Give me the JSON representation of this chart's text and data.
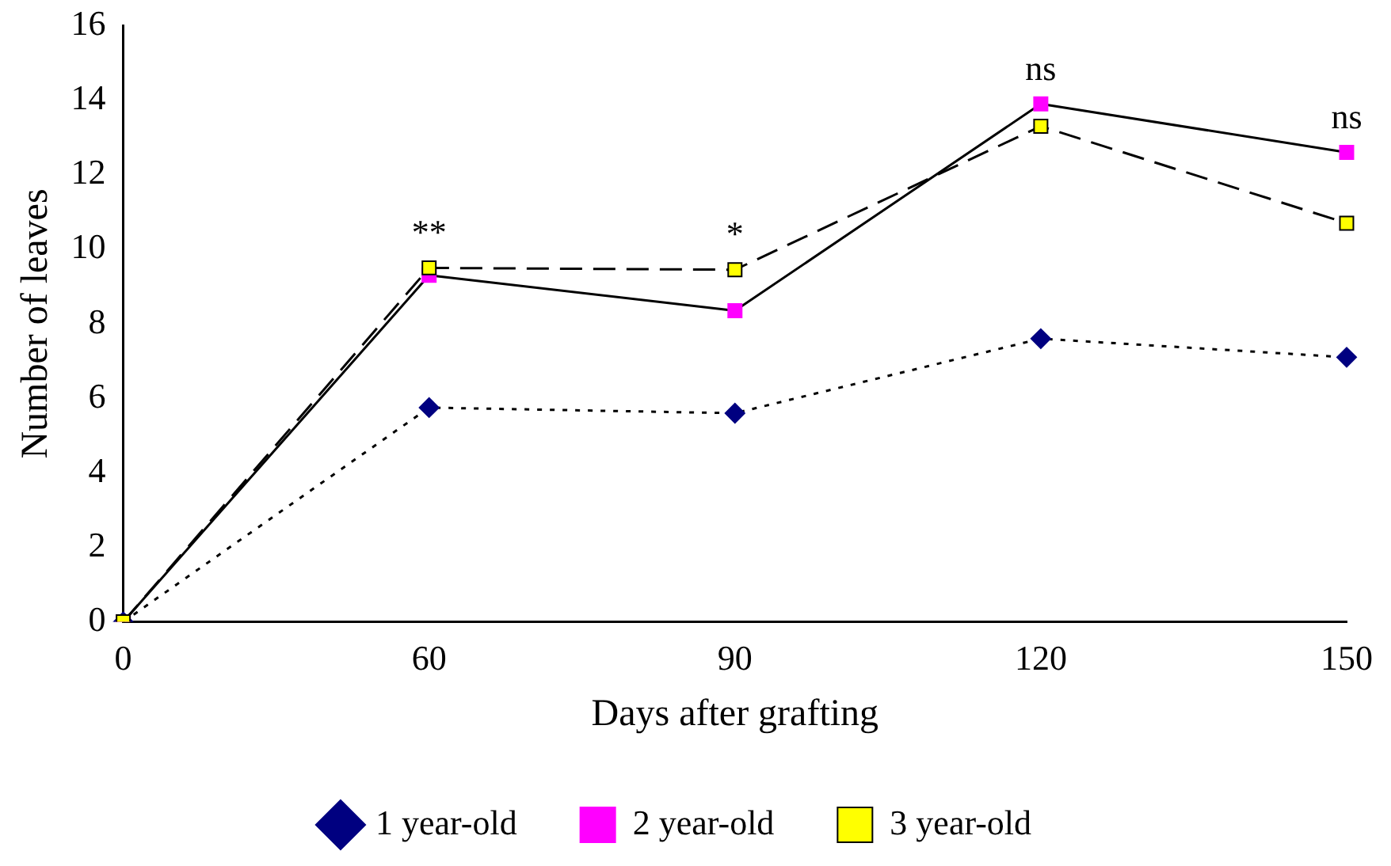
{
  "chart_data": {
    "type": "line",
    "xlabel": "Days after grafting",
    "ylabel": "Number of leaves",
    "categories": [
      "0",
      "60",
      "90",
      "120",
      "150"
    ],
    "series": [
      {
        "name": "1 year-old",
        "color": "#000080",
        "marker": "diamond",
        "line_style": "dotted",
        "values": [
          0,
          5.75,
          5.6,
          7.6,
          7.1
        ]
      },
      {
        "name": "2 year-old",
        "color": "#ff00ff",
        "marker": "square",
        "line_style": "solid",
        "values": [
          0,
          9.3,
          8.35,
          13.9,
          12.6
        ]
      },
      {
        "name": "3 year-old",
        "color": "#ffff00",
        "marker": "square",
        "line_style": "dashed",
        "values": [
          0,
          9.5,
          9.45,
          13.3,
          10.7
        ]
      }
    ],
    "ylim": [
      0,
      16
    ],
    "yticks": [
      0,
      2,
      4,
      6,
      8,
      10,
      12,
      14,
      16
    ],
    "grid": false,
    "legend": "bottom",
    "annotations": [
      {
        "text": "**",
        "x": "60",
        "y": 9.5
      },
      {
        "text": "*",
        "x": "90",
        "y": 9.45
      },
      {
        "text": "ns",
        "x": "120",
        "y": 13.9
      },
      {
        "text": "ns",
        "x": "150",
        "y": 12.6
      }
    ]
  }
}
